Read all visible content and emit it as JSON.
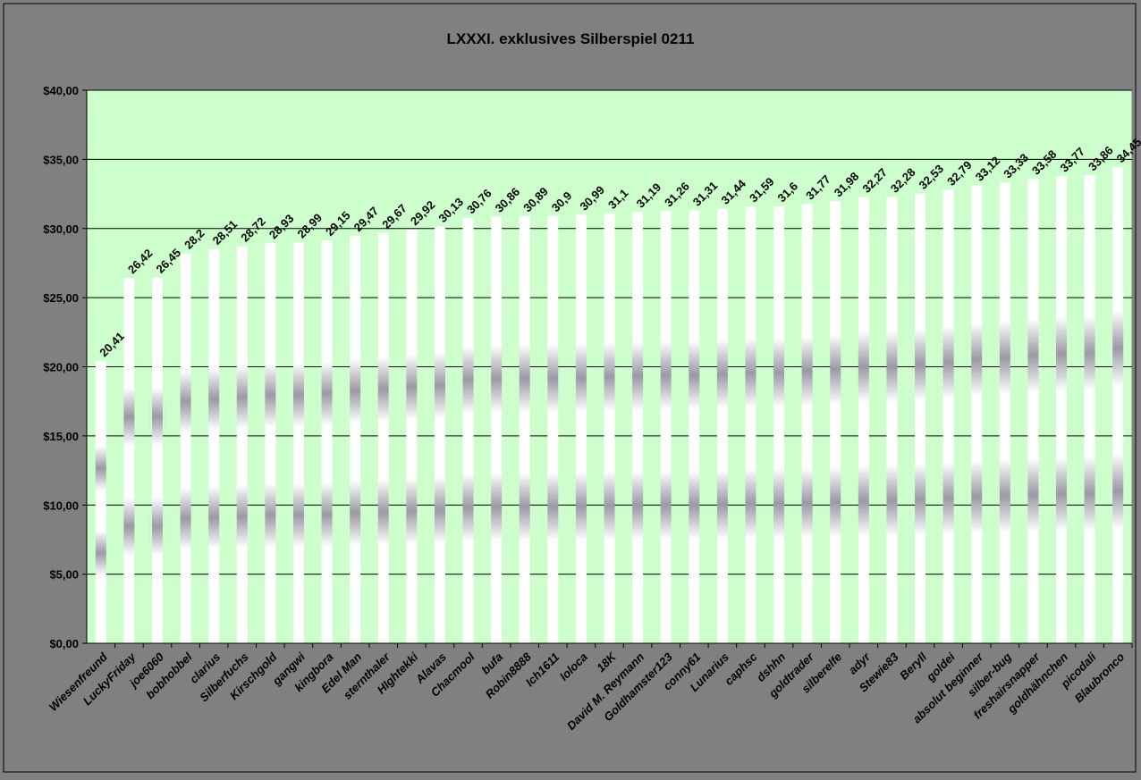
{
  "chart_data": {
    "type": "bar",
    "title": "LXXXI. exklusives Silberspiel 0211",
    "xlabel": "",
    "ylabel": "",
    "ylim": [
      0,
      40
    ],
    "yticks": [
      0,
      5,
      10,
      15,
      20,
      25,
      30,
      35,
      40
    ],
    "ytick_labels": [
      "$0,00",
      "$5,00",
      "$10,00",
      "$15,00",
      "$20,00",
      "$25,00",
      "$30,00",
      "$35,00",
      "$40,00"
    ],
    "grid": true,
    "legend": "none",
    "categories": [
      "Wiesenfreund",
      "LuckyFriday",
      "joe6060",
      "bobhobbel",
      "clarius",
      "Silberfuchs",
      "Kirschgold",
      "gangwi",
      "kingbora",
      "Edel Man",
      "sternthaler",
      "HIghtekki",
      "Alavas",
      "Chacmool",
      "bufa",
      "Robin8888",
      "Ich1611",
      "loloca",
      "18K",
      "David M. Reymann",
      "Goldhamster123",
      "conny61",
      "Lunarius",
      "caphsc",
      "dshhn",
      "goldtrader",
      "silberelfe",
      "adyr",
      "Stewie83",
      "Beryll",
      "goldei",
      "absolut beginner",
      "silber-bug",
      "freshairsnapper",
      "goldhähnchen",
      "picodali",
      "Blaubronco"
    ],
    "values": [
      20.41,
      26.42,
      26.45,
      28.2,
      28.51,
      28.72,
      28.93,
      28.99,
      29.15,
      29.47,
      29.67,
      29.92,
      30.13,
      30.76,
      30.86,
      30.89,
      30.9,
      30.99,
      31.1,
      31.19,
      31.26,
      31.31,
      31.44,
      31.59,
      31.6,
      31.77,
      31.98,
      32.27,
      32.28,
      32.53,
      32.79,
      33.12,
      33.33,
      33.58,
      33.77,
      33.86,
      34.45
    ],
    "value_labels": [
      "20,41",
      "26,42",
      "26,45",
      "28,2",
      "28,51",
      "28,72",
      "28,93",
      "28,99",
      "29,15",
      "29,47",
      "29,67",
      "29,92",
      "30,13",
      "30,76",
      "30,86",
      "30,89",
      "30,9",
      "30,99",
      "31,1",
      "31,19",
      "31,26",
      "31,31",
      "31,44",
      "31,59",
      "31,6",
      "31,77",
      "31,98",
      "32,27",
      "32,28",
      "32,53",
      "32,79",
      "33,12",
      "33,33",
      "33,58",
      "33,77",
      "33,86",
      "34,45"
    ],
    "colors": {
      "page_background": "#808080",
      "plot_background": "#ccffcc",
      "gridline": "#000000",
      "bar_edge": "#ffffff",
      "bar_center": "#9c98a6",
      "text": "#000000"
    }
  }
}
